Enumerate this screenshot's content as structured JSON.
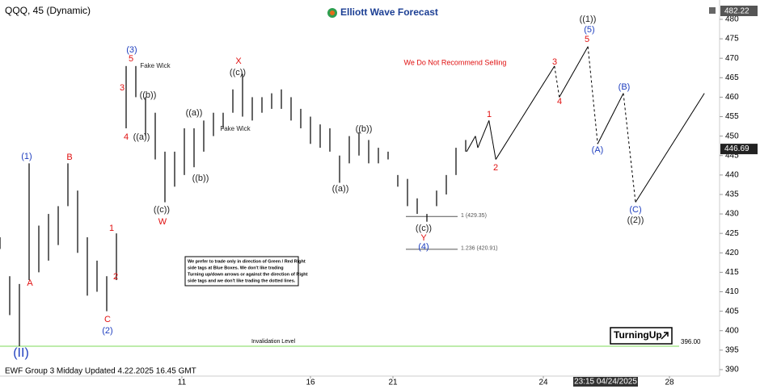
{
  "chart_data": {
    "type": "hilo",
    "title": "QQQ, 45 (Dynamic)",
    "brand": "Elliott Wave Forecast",
    "warning": "We Do Not Recommend Selling",
    "note": [
      "We prefer to trade only in direction of Green / Red Right",
      "side tags at Blue Boxes. We don't like trading",
      "Turning up/down arrows or against the direction of Right",
      "side tags and we don't like trading the dotted lines."
    ],
    "signal": "TurningUp",
    "footer": "EWF Group 3 Midday Updated 4.22.2025 16.45 GMT",
    "cursor_date": "23:15 04/24/2025",
    "top_price": 482.22,
    "last_price": 446.69,
    "xlim": [
      0,
      148
    ],
    "ylim": [
      388,
      483
    ],
    "xticks": [
      {
        "value": 37.5,
        "label": "11"
      },
      {
        "value": 64,
        "label": "16"
      },
      {
        "value": 81,
        "label": "21"
      },
      {
        "value": 112,
        "label": "24"
      },
      {
        "value": 138,
        "label": "28"
      }
    ],
    "yticks": [
      390,
      395,
      400,
      405,
      410,
      415,
      420,
      425,
      430,
      435,
      440,
      445,
      450,
      455,
      460,
      465,
      470,
      475,
      480
    ],
    "series": [
      {
        "name": "QQQ",
        "color": "#000000",
        "x": [
          0,
          2,
          4,
          6,
          8,
          10,
          12,
          14,
          16,
          18,
          20,
          22,
          24,
          26,
          28,
          30,
          32,
          34,
          36,
          38,
          40,
          42,
          44,
          46,
          48,
          50,
          52,
          54,
          56,
          58,
          60,
          62,
          64,
          66,
          68,
          70,
          72,
          74,
          76,
          78,
          80,
          82,
          84,
          86,
          88,
          90,
          92,
          94,
          96
        ],
        "high": [
          424,
          414,
          412,
          443,
          427,
          430,
          432,
          443,
          436,
          424,
          418,
          414,
          425,
          468,
          468,
          460,
          456,
          446,
          446,
          452,
          452,
          454,
          456,
          456,
          462,
          466,
          460,
          460,
          461,
          462,
          460,
          457,
          455,
          453,
          452,
          445,
          450,
          451,
          449,
          447,
          446,
          440,
          439,
          434,
          430,
          436,
          440,
          447,
          449
        ],
        "low": [
          421,
          404,
          396,
          413,
          415,
          418,
          422,
          432,
          420,
          409,
          410,
          405,
          413,
          452,
          460,
          450,
          444,
          433,
          437,
          440,
          442,
          446,
          450,
          452,
          456,
          455,
          454,
          456,
          457,
          457,
          454,
          452,
          448,
          447,
          446,
          438,
          443,
          445,
          443,
          443,
          444,
          437,
          432,
          430,
          428,
          432,
          435,
          440,
          446
        ]
      }
    ],
    "projection": {
      "color": "#000000",
      "x": [
        96.2,
        98,
        98.5,
        100.8,
        102.2,
        114.3,
        115.3,
        121.2,
        123.2,
        128.5,
        131,
        145.2
      ],
      "y": [
        446,
        450,
        447,
        454,
        444,
        468,
        460,
        473,
        448,
        461,
        433,
        461
      ]
    },
    "levels": [
      {
        "text": "1 (429.35)",
        "value": 429.35,
        "color": "#555555"
      },
      {
        "text": "1.236 (420.91)",
        "value": 420.91,
        "color": "#555555"
      }
    ],
    "invalidation": {
      "text": "Invalidation Level",
      "value": 396,
      "label": "396.00",
      "color": "#7ed957"
    },
    "annotations": [
      {
        "text": "(II)",
        "color": "#1f3fbf"
      },
      {
        "text": "(1)",
        "color": "#1f3fbf"
      },
      {
        "text": "A",
        "color": "#e01010"
      },
      {
        "text": "B",
        "color": "#e01010"
      },
      {
        "text": "1",
        "color": "#e01010"
      },
      {
        "text": "2",
        "color": "#e01010"
      },
      {
        "text": "C",
        "color": "#e01010"
      },
      {
        "text": "(2)",
        "color": "#1f3fbf"
      },
      {
        "text": "(3)",
        "color": "#1f3fbf"
      },
      {
        "text": "5",
        "color": "#e01010"
      },
      {
        "text": "3",
        "color": "#e01010"
      },
      {
        "text": "4",
        "color": "#e01010"
      },
      {
        "text": "Fake Wick",
        "color": "#222222"
      },
      {
        "text": "((b))",
        "color": "#222222"
      },
      {
        "text": "((a))",
        "color": "#222222"
      },
      {
        "text": "((c))",
        "color": "#222222"
      },
      {
        "text": "W",
        "color": "#e01010"
      },
      {
        "text": "((a))",
        "color": "#222222"
      },
      {
        "text": "((b))",
        "color": "#222222"
      },
      {
        "text": "X",
        "color": "#e01010"
      },
      {
        "text": "((c))",
        "color": "#222222"
      },
      {
        "text": "Fake Wick",
        "color": "#222222"
      },
      {
        "text": "((b))",
        "color": "#222222"
      },
      {
        "text": "((a))",
        "color": "#222222"
      },
      {
        "text": "((c))",
        "color": "#222222"
      },
      {
        "text": "Y",
        "color": "#e01010"
      },
      {
        "text": "(4)",
        "color": "#1f3fbf"
      },
      {
        "text": "1",
        "color": "#e01010"
      },
      {
        "text": "2",
        "color": "#e01010"
      },
      {
        "text": "3",
        "color": "#e01010"
      },
      {
        "text": "4",
        "color": "#e01010"
      },
      {
        "text": "5",
        "color": "#e01010"
      },
      {
        "text": "(5)",
        "color": "#1f3fbf"
      },
      {
        "text": "((1))",
        "color": "#222222"
      },
      {
        "text": "(A)",
        "color": "#1f3fbf"
      },
      {
        "text": "(B)",
        "color": "#1f3fbf"
      },
      {
        "text": "(C)",
        "color": "#1f3fbf"
      },
      {
        "text": "((2))",
        "color": "#222222"
      }
    ]
  }
}
